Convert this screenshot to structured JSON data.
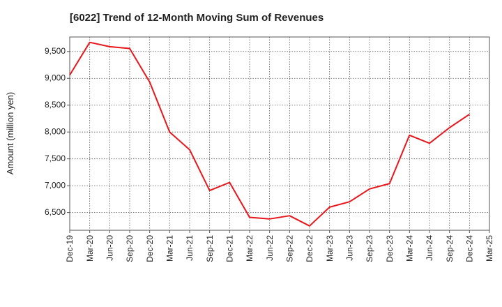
{
  "chart_data": {
    "type": "line",
    "title": "[6022]  Trend of 12-Month Moving Sum of Revenues",
    "xlabel": "",
    "ylabel": "Amount (million yen)",
    "x": [
      "Dec-19",
      "Mar-20",
      "Jun-20",
      "Sep-20",
      "Dec-20",
      "Mar-21",
      "Jun-21",
      "Sep-21",
      "Dec-21",
      "Mar-22",
      "Jun-22",
      "Sep-22",
      "Dec-22",
      "Mar-23",
      "Jun-23",
      "Sep-23",
      "Dec-23",
      "Mar-24",
      "Jun-24",
      "Sep-24",
      "Dec-24",
      "Mar-25"
    ],
    "series": [
      {
        "color": "#e8161b",
        "values": [
          9060,
          9670,
          9590,
          9555,
          8930,
          8000,
          7670,
          6910,
          7060,
          6410,
          6380,
          6440,
          6250,
          6600,
          6700,
          6940,
          7040,
          7940,
          7790,
          8080,
          8330,
          null
        ]
      }
    ],
    "yticks": [
      6500,
      7000,
      7500,
      8000,
      8500,
      9000,
      9500
    ],
    "ytick_labels": [
      "6,500",
      "7,000",
      "7,500",
      "8,000",
      "8,500",
      "9,000",
      "9,500"
    ],
    "ylim": [
      6170,
      9770
    ],
    "grid": true
  }
}
